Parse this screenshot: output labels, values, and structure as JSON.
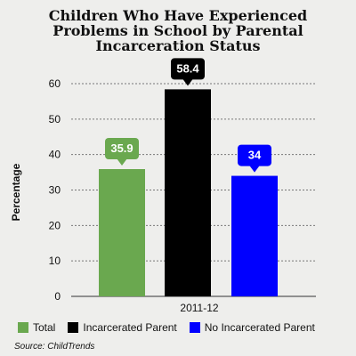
{
  "chart_data": {
    "type": "bar",
    "title_lines": [
      "Children Who Have Experienced",
      "Problems in School by Parental",
      "Incarceration Status"
    ],
    "ylabel": "Percentage",
    "xlabel": "",
    "categories": [
      "2011-12"
    ],
    "series": [
      {
        "name": "Total",
        "values": [
          35.9
        ],
        "color": "#6aa84f"
      },
      {
        "name": "Incarcerated Parent",
        "values": [
          58.4
        ],
        "color": "#000000"
      },
      {
        "name": "No Incarcerated Parent",
        "values": [
          34
        ],
        "color": "#0000ff"
      }
    ],
    "value_labels": [
      "35.9",
      "58.4",
      "34"
    ],
    "ylim": [
      0,
      60
    ],
    "yticks": [
      0,
      10,
      20,
      30,
      40,
      50,
      60
    ],
    "grid": true,
    "legend_position": "bottom-left"
  },
  "source": "Source: ChildTrends"
}
